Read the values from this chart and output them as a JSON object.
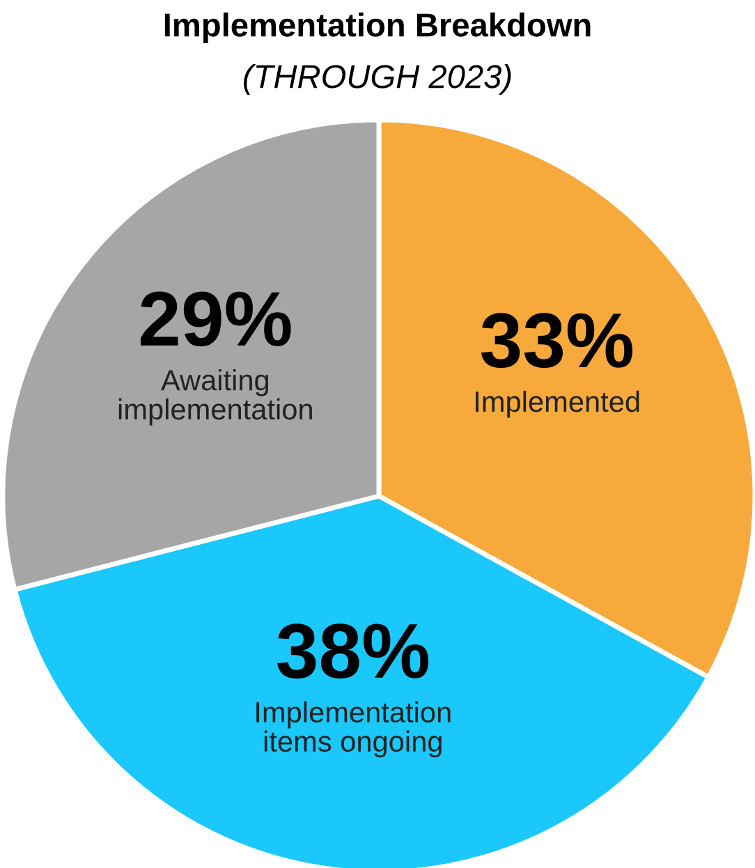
{
  "chart_data": {
    "type": "pie",
    "title": "Implementation Breakdown",
    "subtitle": "(THROUGH 2023)",
    "categories": [
      "Implemented",
      "Implementation\nitems ongoing",
      "Awaiting\nimplementation"
    ],
    "values": [
      33,
      38,
      29
    ],
    "value_labels": [
      "33%",
      "38%",
      "29%"
    ],
    "colors": [
      "#f7a93b",
      "#1ac8fc",
      "#a6a6a6"
    ],
    "legend": false
  }
}
